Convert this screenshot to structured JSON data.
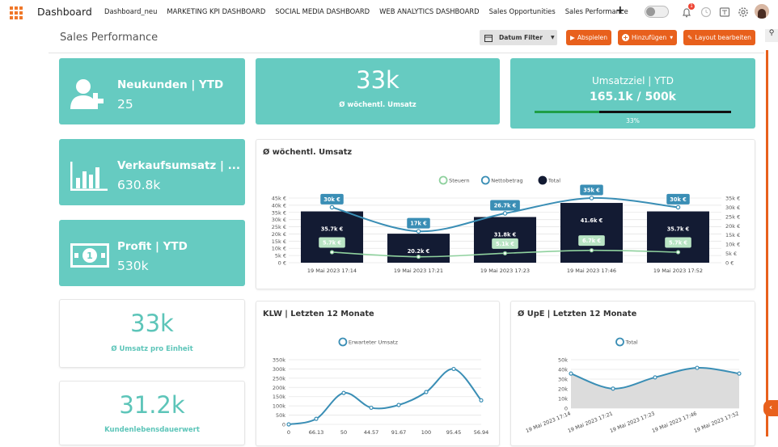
{
  "nav": {
    "brand": "Dashboard",
    "tabs": [
      "Dashboard_neu",
      "MARKETING KPI DASHBOARD",
      "SOCIAL MEDIA DASHBOARD",
      "WEB ANALYTICS DASHBOARD",
      "Sales Opportunities",
      "Sales Performance"
    ],
    "add": "+",
    "notification_count": "1",
    "icons": [
      "apps-grid-icon",
      "toggle-switch",
      "bell-icon",
      "clock-icon",
      "translate-icon",
      "gear-icon",
      "user-avatar"
    ]
  },
  "header": {
    "title": "Sales Performance",
    "filter_label": "Datum Filter",
    "play_label": "Abspielen",
    "add_label": "Hinzufügen",
    "edit_label": "Layout bearbeiten"
  },
  "kpis": {
    "new_customers": {
      "title": "Neukunden | YTD",
      "value": "25"
    },
    "sales": {
      "title": "Verkaufsumsatz | ...",
      "value": "630.8k"
    },
    "profit": {
      "title": "Profit | YTD",
      "value": "530k"
    },
    "weekly": {
      "value": "33k",
      "label": "Ø wöchentl. Umsatz"
    },
    "target": {
      "title": "Umsatzziel | YTD",
      "value": "165.1k / 500k",
      "percent_label": "33%",
      "progress": 0.33
    },
    "per_unit": {
      "value": "33k",
      "label": "Ø Umsatz pro Einheit"
    },
    "clv": {
      "value": "31.2k",
      "label": "Kundenlebensdauerwert"
    }
  },
  "colors": {
    "teal": "#66cbc1",
    "orange": "#e8601c",
    "navy": "#131b33",
    "line_blue": "#3a8eb5",
    "line_green": "#8fd19e"
  },
  "chart_data": [
    {
      "type": "bar",
      "title": "Ø wöchentl. Umsatz",
      "legend": [
        "Steuern",
        "Nettobetrag",
        "Total"
      ],
      "categories": [
        "19 Mai 2023 17:14",
        "19 Mai 2023 17:21",
        "19 Mai 2023 17:23",
        "19 Mai 2023 17:46",
        "19 Mai 2023 17:52"
      ],
      "series": [
        {
          "name": "Total",
          "values": [
            35.7,
            20.2,
            31.8,
            41.6,
            35.7
          ],
          "labels": [
            "35.7k €",
            "20.2k €",
            "31.8k €",
            "41.6k €",
            "35.7k €"
          ]
        },
        {
          "name": "Nettobetrag",
          "values": [
            30,
            17,
            26.7,
            35,
            30
          ],
          "labels": [
            "30k €",
            "17k €",
            "26.7k €",
            "35k €",
            "30k €"
          ]
        },
        {
          "name": "Steuern",
          "values": [
            5.7,
            3.2,
            5.1,
            6.7,
            5.7
          ],
          "labels": [
            "5.7k €",
            "",
            "5.1k €",
            "6.7k €",
            "5.7k €"
          ]
        }
      ],
      "y_left_ticks": [
        "0 €",
        "5k €",
        "10k €",
        "15k €",
        "20k €",
        "25k €",
        "30k €",
        "35k €",
        "40k €",
        "45k €"
      ],
      "y_right_ticks": [
        "0 €",
        "5k €",
        "10k €",
        "15k €",
        "20k €",
        "25k €",
        "30k €",
        "35k €"
      ],
      "ylim_left": [
        0,
        45
      ],
      "ylim_right": [
        0,
        35
      ]
    },
    {
      "type": "line",
      "title": "KLW | Letzten 12 Monate",
      "legend": [
        "Erwarteter Umsatz"
      ],
      "x": [
        "0",
        "66.13",
        "50",
        "44.57",
        "91.67",
        "100",
        "95.45",
        "56.94"
      ],
      "y": [
        0,
        30,
        170,
        90,
        105,
        175,
        300,
        130
      ],
      "y_ticks": [
        "0",
        "50k",
        "100k",
        "150k",
        "200k",
        "250k",
        "300k",
        "350k"
      ],
      "ylim": [
        0,
        350
      ]
    },
    {
      "type": "area",
      "title": "Ø UpE | Letzten 12 Monate",
      "legend": [
        "Total"
      ],
      "x": [
        "19 Mai 2023 17:14",
        "19 Mai 2023 17:21",
        "19 Mai 2023 17:23",
        "19 Mai 2023 17:46",
        "19 Mai 2023 17:52"
      ],
      "y": [
        35.7,
        20.2,
        31.8,
        41.6,
        35.7
      ],
      "y_ticks": [
        "0",
        "10k",
        "20k",
        "30k",
        "40k",
        "50k"
      ],
      "ylim": [
        0,
        50
      ]
    }
  ]
}
